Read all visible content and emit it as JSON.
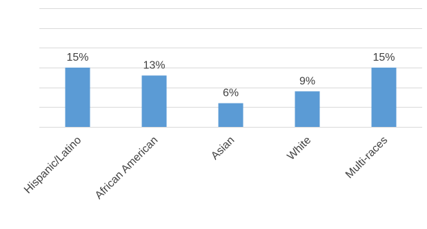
{
  "chart_data": {
    "type": "bar",
    "categories": [
      "Hispanic/Latino",
      "African American",
      "Asian",
      "White",
      "Multi-races"
    ],
    "values": [
      15,
      13,
      6,
      9,
      15
    ],
    "data_labels": [
      "15%",
      "13%",
      "6%",
      "9%",
      "15%"
    ],
    "unit": "%",
    "ylim": [
      0,
      30
    ],
    "gridlines": [
      0,
      5,
      10,
      15,
      20,
      25,
      30
    ],
    "grid": true,
    "legend": "none",
    "bar_color": "#5b9bd5",
    "grid_color": "#d9d9d9",
    "label_color": "#404040"
  }
}
